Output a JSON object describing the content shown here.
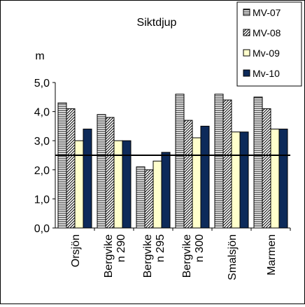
{
  "chart_data": {
    "type": "bar",
    "title": "Siktdjup",
    "ylabel": "m",
    "xlabel": "",
    "ylim": [
      0,
      5
    ],
    "yticks": [
      "0,0",
      "1,0",
      "2,0",
      "3,0",
      "4,0",
      "5,0"
    ],
    "grid": false,
    "legend_position": "top-right",
    "reference_line": 2.5,
    "categories": [
      [
        "Orsjön"
      ],
      [
        "Bergvike",
        "n 290"
      ],
      [
        "Bergvike",
        "n 295"
      ],
      [
        "Bergvike",
        "n 300"
      ],
      [
        "Smalsjön"
      ],
      [
        "Marmen"
      ]
    ],
    "series": [
      {
        "name": "MV-07",
        "values": [
          4.3,
          3.9,
          2.1,
          4.6,
          4.6,
          4.5
        ],
        "pattern": "horizontal-lines",
        "color": "#ffffff"
      },
      {
        "name": "MV-08",
        "values": [
          4.1,
          3.8,
          2.0,
          3.7,
          4.4,
          4.1
        ],
        "pattern": "diagonal-lines",
        "color": "#ffffff"
      },
      {
        "name": "Mv-09",
        "values": [
          3.0,
          3.0,
          2.3,
          3.1,
          3.3,
          3.4
        ],
        "pattern": "solid",
        "color": "#ffffcc"
      },
      {
        "name": "Mv-10",
        "values": [
          3.4,
          3.0,
          2.6,
          3.5,
          3.3,
          3.4
        ],
        "pattern": "solid",
        "color": "#0d2a5a"
      }
    ]
  }
}
